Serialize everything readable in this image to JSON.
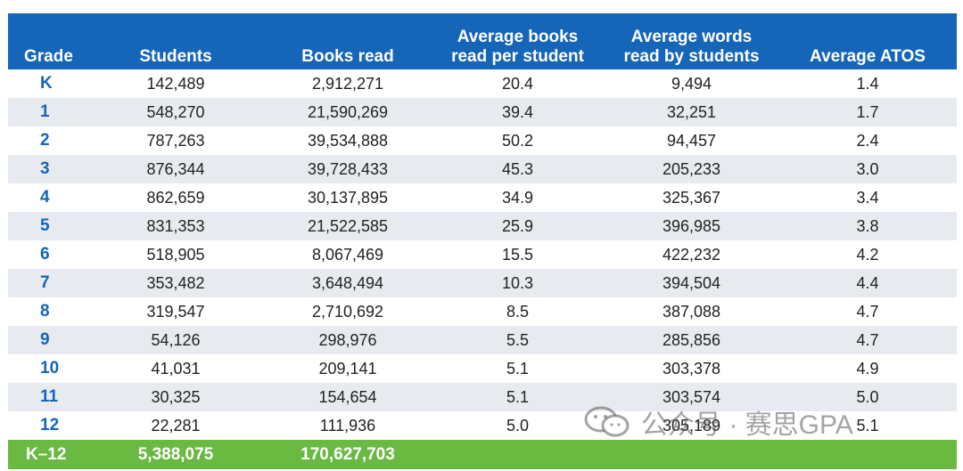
{
  "table": {
    "headers": [
      [
        "Grade"
      ],
      [
        "Students"
      ],
      [
        "Books read"
      ],
      [
        "Average books",
        "read per student"
      ],
      [
        "Average words",
        "read by students"
      ],
      [
        "Average ATOS"
      ]
    ],
    "rows": [
      [
        "K",
        "142,489",
        "2,912,271",
        "20.4",
        "9,494",
        "1.4"
      ],
      [
        "1",
        "548,270",
        "21,590,269",
        "39.4",
        "32,251",
        "1.7"
      ],
      [
        "2",
        "787,263",
        "39,534,888",
        "50.2",
        "94,457",
        "2.4"
      ],
      [
        "3",
        "876,344",
        "39,728,433",
        "45.3",
        "205,233",
        "3.0"
      ],
      [
        "4",
        "862,659",
        "30,137,895",
        "34.9",
        "325,367",
        "3.4"
      ],
      [
        "5",
        "831,353",
        "21,522,585",
        "25.9",
        "396,985",
        "3.8"
      ],
      [
        "6",
        "518,905",
        "8,067,469",
        "15.5",
        "422,232",
        "4.2"
      ],
      [
        "7",
        "353,482",
        "3,648,494",
        "10.3",
        "394,504",
        "4.4"
      ],
      [
        "8",
        "319,547",
        "2,710,692",
        "8.5",
        "387,088",
        "4.7"
      ],
      [
        "9",
        "54,126",
        "298,976",
        "5.5",
        "285,856",
        "4.7"
      ],
      [
        "10",
        "41,031",
        "209,141",
        "5.1",
        "303,378",
        "4.9"
      ],
      [
        "11",
        "30,325",
        "154,654",
        "5.1",
        "303,574",
        "5.0"
      ],
      [
        "12",
        "22,281",
        "111,936",
        "5.0",
        "305,189",
        "5.1"
      ]
    ],
    "total": [
      "K–12",
      "5,388,075",
      "170,627,703",
      "",
      "",
      ""
    ]
  },
  "watermark": {
    "text": "公众号 · 赛思GPA",
    "icon": "wechat-icon"
  },
  "colors": {
    "header_bg": "#1565b8",
    "grade_text": "#1565b8",
    "stripe": "#e7ebf0",
    "total_bg": "#6ab941"
  }
}
